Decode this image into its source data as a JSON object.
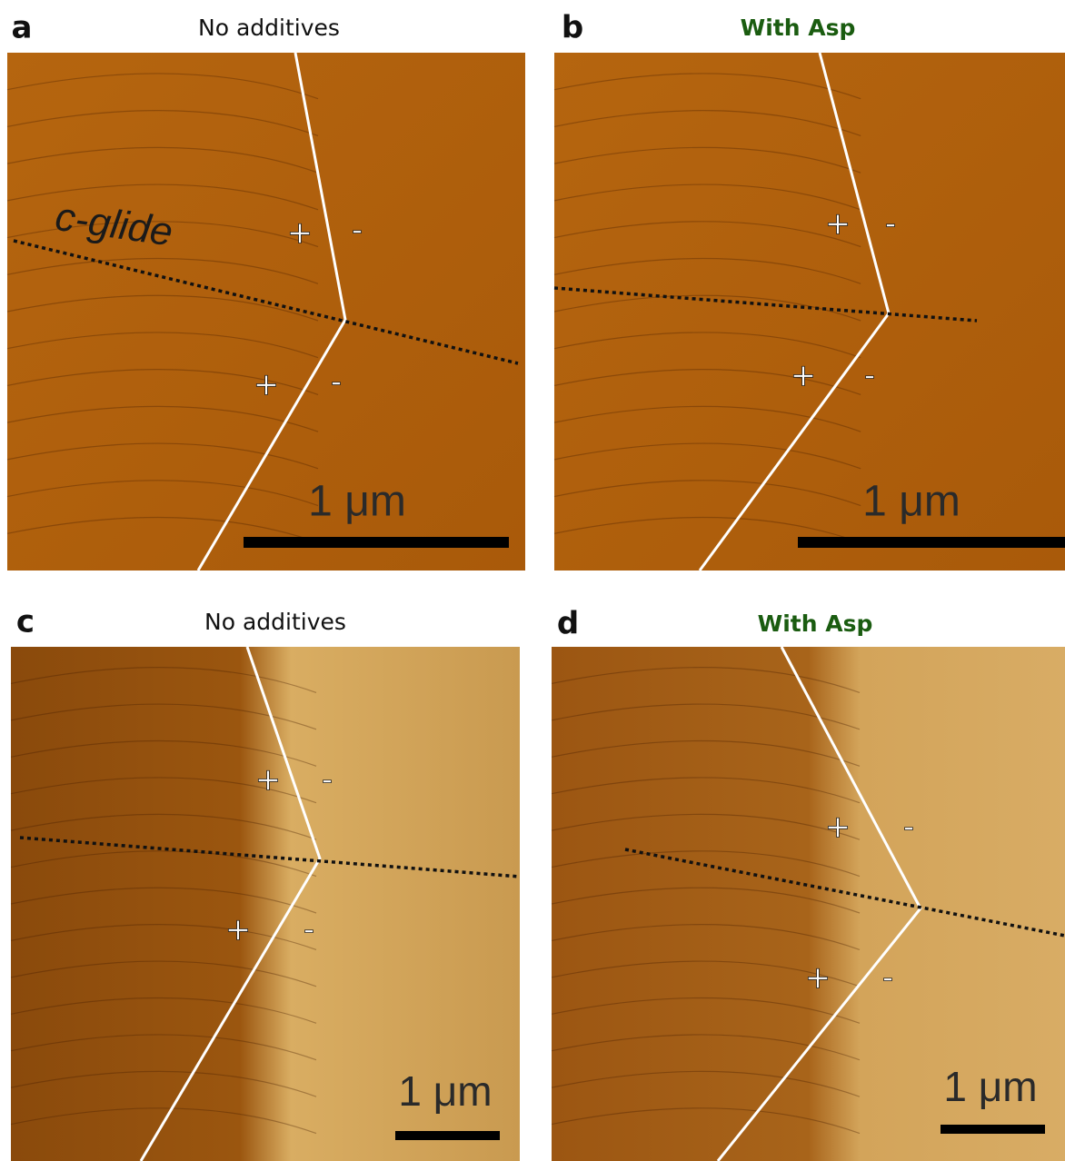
{
  "panels": [
    {
      "letter": "a",
      "title": "No additives",
      "annotation": "c-glide",
      "signs": [
        "+",
        "-",
        "+",
        "-"
      ],
      "scale_label": "1 μm"
    },
    {
      "letter": "b",
      "title": "With Asp",
      "signs": [
        "+",
        "-",
        "+",
        "-"
      ],
      "scale_label": "1 μm"
    },
    {
      "letter": "c",
      "title": "No additives",
      "signs": [
        "+",
        "-",
        "+",
        "-"
      ],
      "scale_label": "1 μm"
    },
    {
      "letter": "d",
      "title": "With Asp",
      "signs": [
        "+",
        "-",
        "+",
        "-"
      ],
      "scale_label": "1 μm"
    }
  ]
}
